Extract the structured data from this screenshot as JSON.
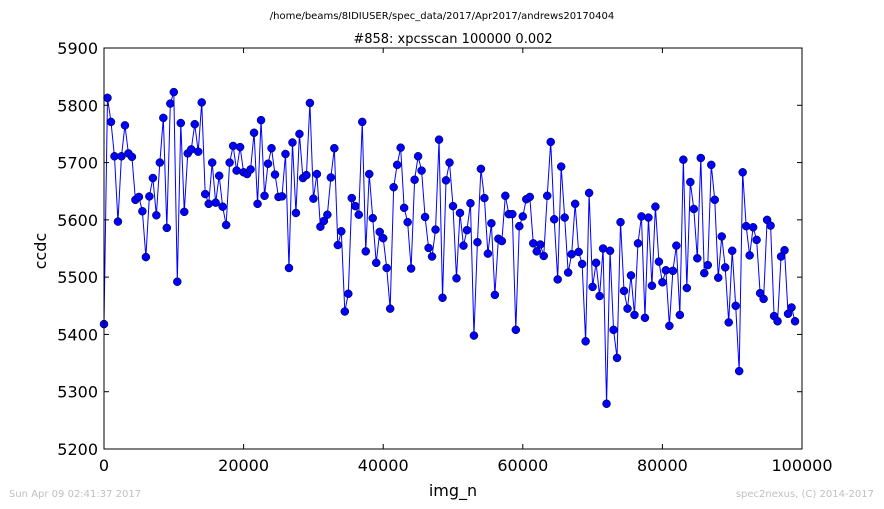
{
  "footer": {
    "timestamp": "Sun Apr 09 02:41:37 2017",
    "credit": "spec2nexus, (C) 2014-2017"
  },
  "chart_data": {
    "type": "line",
    "suptitle": "/home/beams/8IDIUSER/spec_data/2017/Apr2017/andrews20170404",
    "title": "#858: xpcsscan 100000 0.002",
    "xlabel": "img_n",
    "ylabel": "ccdc",
    "xlim": [
      0,
      100000
    ],
    "ylim": [
      5200,
      5900
    ],
    "xticks": [
      0,
      20000,
      40000,
      60000,
      80000,
      100000
    ],
    "yticks": [
      5200,
      5300,
      5400,
      5500,
      5600,
      5700,
      5800,
      5900
    ],
    "grid": false,
    "marker": "circle",
    "color": "#0000ff",
    "x_start": 0,
    "x_step": 500,
    "series": [
      {
        "values": [
          5418,
          5813,
          5771,
          5711,
          5597,
          5711,
          5765,
          5716,
          5710,
          5635,
          5640,
          5615,
          5535,
          5641,
          5673,
          5608,
          5700,
          5778,
          5586,
          5803,
          5823,
          5492,
          5769,
          5614,
          5716,
          5723,
          5767,
          5719,
          5805,
          5645,
          5628,
          5700,
          5630,
          5677,
          5623,
          5591,
          5700,
          5729,
          5686,
          5727,
          5683,
          5680,
          5688,
          5752,
          5628,
          5774,
          5642,
          5698,
          5725,
          5679,
          5640,
          5641,
          5715,
          5516,
          5735,
          5612,
          5750,
          5673,
          5678,
          5804,
          5637,
          5680,
          5588,
          5598,
          5609,
          5674,
          5725,
          5556,
          5580,
          5440,
          5471,
          5638,
          5624,
          5609,
          5771,
          5545,
          5680,
          5603,
          5525,
          5579,
          5568,
          5516,
          5445,
          5657,
          5696,
          5726,
          5621,
          5596,
          5515,
          5670,
          5711,
          5686,
          5605,
          5551,
          5536,
          5583,
          5740,
          5464,
          5669,
          5700,
          5624,
          5498,
          5612,
          5555,
          5582,
          5629,
          5398,
          5561,
          5689,
          5638,
          5541,
          5594,
          5469,
          5567,
          5563,
          5642,
          5610,
          5610,
          5408,
          5589,
          5606,
          5636,
          5640,
          5559,
          5545,
          5557,
          5537,
          5642,
          5736,
          5601,
          5496,
          5693,
          5604,
          5508,
          5540,
          5628,
          5544,
          5523,
          5388,
          5647,
          5483,
          5525,
          5467,
          5550,
          5279,
          5546,
          5408,
          5359,
          5596,
          5476,
          5445,
          5503,
          5434,
          5559,
          5606,
          5429,
          5604,
          5485,
          5623,
          5527,
          5491,
          5512,
          5415,
          5511,
          5555,
          5434,
          5705,
          5481,
          5666,
          5619,
          5533,
          5708,
          5507,
          5521,
          5696,
          5635,
          5499,
          5571,
          5517,
          5421,
          5546,
          5450,
          5336,
          5683,
          5589,
          5538,
          5587,
          5565,
          5472,
          5462,
          5600,
          5590,
          5432,
          5423,
          5536,
          5547,
          5436,
          5447,
          5423
        ]
      }
    ]
  }
}
